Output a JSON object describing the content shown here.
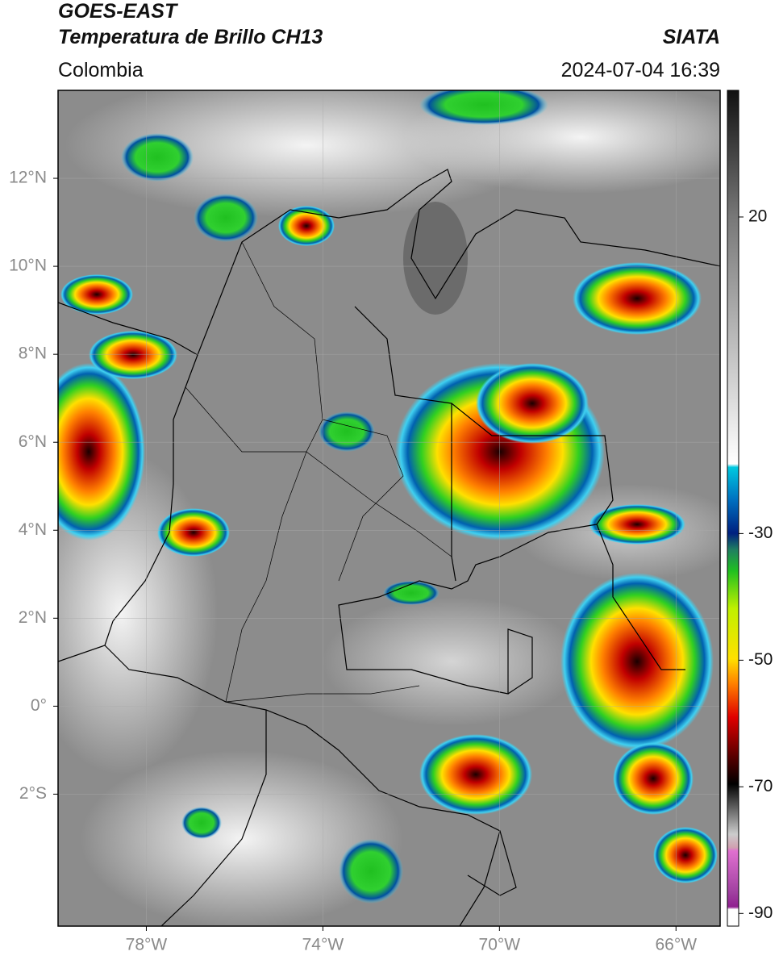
{
  "header": {
    "title": "GOES-EAST",
    "subtitle": "Temperatura de Brillo CH13",
    "source": "SIATA",
    "region": "Colombia",
    "timestamp": "2024-07-04 16:39"
  },
  "map": {
    "xlim": [
      -80,
      -65
    ],
    "ylim": [
      -5,
      14
    ],
    "xticks": [
      {
        "value": -78,
        "label": "78°W"
      },
      {
        "value": -74,
        "label": "74°W"
      },
      {
        "value": -70,
        "label": "70°W"
      },
      {
        "value": -66,
        "label": "66°W"
      }
    ],
    "yticks": [
      {
        "value": 12,
        "label": "12°N"
      },
      {
        "value": 10,
        "label": "10°N"
      },
      {
        "value": 8,
        "label": "8°N"
      },
      {
        "value": 6,
        "label": "6°N"
      },
      {
        "value": 4,
        "label": "4°N"
      },
      {
        "value": 2,
        "label": "2°N"
      },
      {
        "value": 0,
        "label": "0°"
      },
      {
        "value": -2,
        "label": "2°S"
      }
    ],
    "grid": true
  },
  "colorbar": {
    "lim": [
      -92,
      40
    ],
    "ticks": [
      20,
      -30,
      -50,
      -70,
      -90
    ]
  }
}
